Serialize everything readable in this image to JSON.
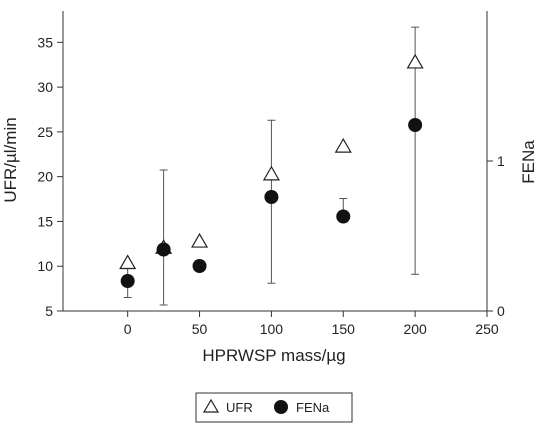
{
  "chart_data": {
    "type": "scatter",
    "xlabel": "HPRWSP mass/µg",
    "ylabel": "UFR/µl/min",
    "y2label": "FENa",
    "xlim": [
      -45,
      250
    ],
    "ylim": [
      5,
      38.5
    ],
    "y2lim": [
      0,
      2.0
    ],
    "x_ticks": [
      0,
      50,
      100,
      150,
      200,
      250
    ],
    "y_ticks": [
      5,
      10,
      15,
      20,
      25,
      30,
      35
    ],
    "y2_ticks": [
      0,
      1
    ],
    "legend_position": "bottom-center",
    "series": [
      {
        "name": "UFR",
        "axis": "left",
        "marker": "open-triangle",
        "x": [
          0,
          25,
          50,
          100,
          150,
          200
        ],
        "y": [
          10.3,
          12.0,
          12.7,
          20.2,
          23.3,
          32.7
        ],
        "err_low": [
          null,
          null,
          null,
          8.1,
          null,
          9.1
        ],
        "err_high": [
          null,
          null,
          null,
          26.3,
          null,
          36.7
        ]
      },
      {
        "name": "FENa",
        "axis": "right",
        "marker": "filled-circle",
        "x": [
          0,
          25,
          50,
          100,
          150,
          200
        ],
        "y": [
          0.2,
          0.41,
          0.3,
          0.76,
          0.63,
          1.24
        ],
        "err_low": [
          0.09,
          0.04,
          null,
          null,
          null,
          null
        ],
        "err_high": [
          0.32,
          0.94,
          null,
          null,
          0.75,
          null
        ]
      }
    ]
  }
}
